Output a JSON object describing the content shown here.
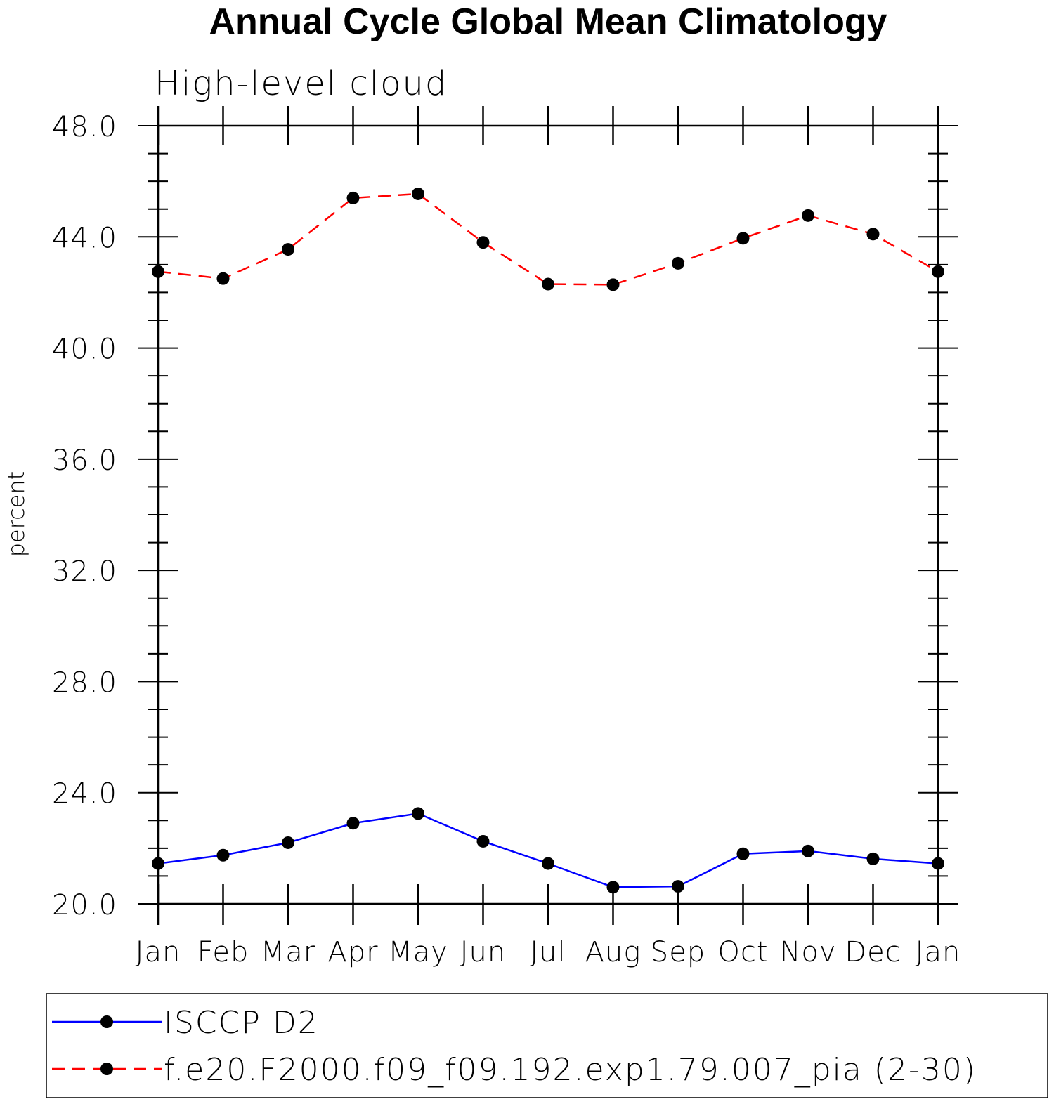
{
  "chart_data": {
    "type": "line",
    "title": "Annual Cycle Global Mean Climatology",
    "subtitle": "High-level cloud",
    "xlabel": "",
    "ylabel": "percent",
    "categories": [
      "Jan",
      "Feb",
      "Mar",
      "Apr",
      "May",
      "Jun",
      "Jul",
      "Aug",
      "Sep",
      "Oct",
      "Nov",
      "Dec",
      "Jan"
    ],
    "ylim": [
      20.0,
      48.0
    ],
    "yticks": [
      "20.0",
      "24.0",
      "28.0",
      "32.0",
      "36.0",
      "40.0",
      "44.0",
      "48.0"
    ],
    "series": [
      {
        "name": "ISCCP D2",
        "color": "#0000ff",
        "line_style": "solid",
        "marker": "filled-circle",
        "values": [
          21.45,
          21.75,
          22.2,
          22.9,
          23.25,
          22.25,
          21.45,
          20.6,
          20.63,
          21.8,
          21.9,
          21.62,
          21.45
        ]
      },
      {
        "name": "f.e20.F2000.f09_f09.192.exp1.79.007_pia (2-30)",
        "color": "#ff0000",
        "line_style": "dashed",
        "marker": "filled-circle",
        "values": [
          42.75,
          42.5,
          43.55,
          45.4,
          45.55,
          43.8,
          42.3,
          42.28,
          43.05,
          43.95,
          44.77,
          44.1,
          42.75
        ]
      }
    ],
    "legend_placement": "bottom",
    "grid": false
  }
}
